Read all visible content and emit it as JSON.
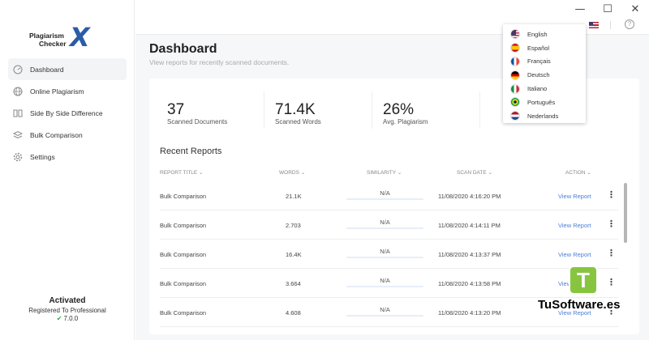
{
  "window": {
    "minimize": "—",
    "maximize": "☐",
    "close": "✕"
  },
  "logo": {
    "line1": "Plagiarism",
    "line2": "Checker",
    "mark": "X"
  },
  "sidebar": {
    "items": [
      {
        "label": "Dashboard",
        "icon": "gauge-icon",
        "active": true
      },
      {
        "label": "Online Plagiarism",
        "icon": "globe-icon",
        "active": false
      },
      {
        "label": "Side By Side Difference",
        "icon": "compare-icon",
        "active": false
      },
      {
        "label": "Bulk Comparison",
        "icon": "stack-icon",
        "active": false
      },
      {
        "label": "Settings",
        "icon": "gear-icon",
        "active": false
      }
    ],
    "status": {
      "title": "Activated",
      "line": "Registered To Professional",
      "version": "7.0.0"
    }
  },
  "header": {
    "title": "Dashboard",
    "subtitle": "View reports for recently scanned documents."
  },
  "stats": [
    {
      "value": "37",
      "label": "Scanned Documents"
    },
    {
      "value": "71.4K",
      "label": "Scanned Words"
    },
    {
      "value": "26%",
      "label": "Avg. Plagiarism"
    }
  ],
  "recent": {
    "title": "Recent Reports",
    "columns": [
      "REPORT TITLE",
      "WORDS",
      "SIMILARITY",
      "SCAN DATE",
      "ACTION"
    ],
    "rows": [
      {
        "title": "Bulk Comparison",
        "words": "21.1K",
        "similarity": "N/A",
        "date": "11/08/2020 4:16:20 PM",
        "action": "View Report"
      },
      {
        "title": "Bulk Comparison",
        "words": "2.703",
        "similarity": "N/A",
        "date": "11/08/2020 4:14:11 PM",
        "action": "View Report"
      },
      {
        "title": "Bulk Comparison",
        "words": "16.4K",
        "similarity": "N/A",
        "date": "11/08/2020 4:13:37 PM",
        "action": "View Report"
      },
      {
        "title": "Bulk Comparison",
        "words": "3.664",
        "similarity": "N/A",
        "date": "11/08/2020 4:13:58 PM",
        "action": "View Report"
      },
      {
        "title": "Bulk Comparison",
        "words": "4.608",
        "similarity": "N/A",
        "date": "11/08/2020 4:13:20 PM",
        "action": "View Report"
      }
    ]
  },
  "languages": [
    {
      "label": "English",
      "flag": "us-flag-icon"
    },
    {
      "label": "Español",
      "flag": "es-flag-icon"
    },
    {
      "label": "Français",
      "flag": "fr-flag-icon"
    },
    {
      "label": "Deutsch",
      "flag": "de-flag-icon"
    },
    {
      "label": "Italiano",
      "flag": "it-flag-icon"
    },
    {
      "label": "Português",
      "flag": "br-flag-icon"
    },
    {
      "label": "Nederlands",
      "flag": "nl-flag-icon"
    }
  ],
  "help_glyph": "?",
  "watermark": {
    "badge": "T",
    "text": "TuSoftware.es"
  },
  "colors": {
    "accent": "#2b5ca8",
    "link": "#4a7fd6",
    "check": "#2ea44f",
    "watermark": "#87c540"
  }
}
